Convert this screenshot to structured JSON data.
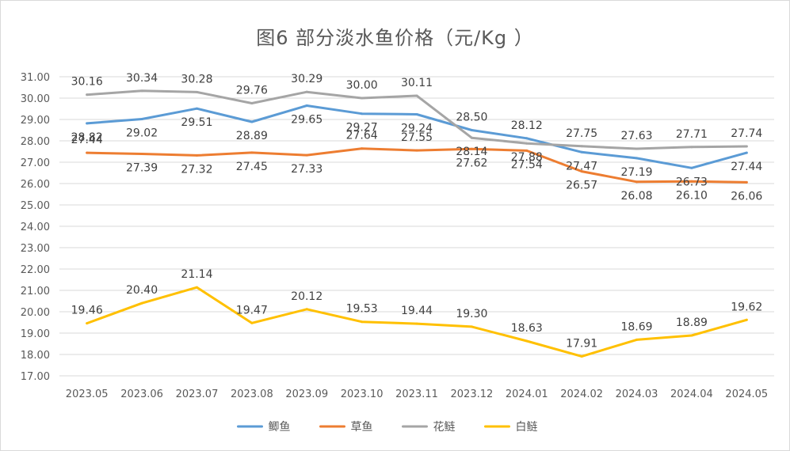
{
  "chart_data": {
    "type": "line",
    "title": "图6  部分淡水鱼价格（元/Kg ）",
    "xlabel": "",
    "ylabel": "",
    "categories": [
      "2023.05",
      "2023.06",
      "2023.07",
      "2023.08",
      "2023.09",
      "2023.10",
      "2023.11",
      "2023.12",
      "2024.01",
      "2024.02",
      "2024.03",
      "2024.04",
      "2024.05"
    ],
    "ylim": [
      17,
      31
    ],
    "yticks": [
      "17.00",
      "18.00",
      "19.00",
      "20.00",
      "21.00",
      "22.00",
      "23.00",
      "24.00",
      "25.00",
      "26.00",
      "27.00",
      "28.00",
      "29.00",
      "30.00",
      "31.00"
    ],
    "grid": true,
    "legend_position": "bottom",
    "series": [
      {
        "name": "鲫鱼",
        "color": "#5b9bd5",
        "values": [
          28.82,
          29.02,
          29.51,
          28.89,
          29.65,
          29.27,
          29.24,
          28.5,
          28.12,
          27.47,
          27.19,
          26.73,
          27.44
        ]
      },
      {
        "name": "草鱼",
        "color": "#ed7d31",
        "values": [
          27.44,
          27.39,
          27.32,
          27.45,
          27.33,
          27.64,
          27.55,
          27.62,
          27.54,
          26.57,
          26.08,
          26.1,
          26.06
        ]
      },
      {
        "name": "花鲢",
        "color": "#a5a5a5",
        "values": [
          30.16,
          30.34,
          30.28,
          29.76,
          30.29,
          30.0,
          30.11,
          28.14,
          27.88,
          27.75,
          27.63,
          27.71,
          27.74
        ]
      },
      {
        "name": "白鲢",
        "color": "#ffc000",
        "values": [
          19.46,
          20.4,
          21.14,
          19.47,
          20.12,
          19.53,
          19.44,
          19.3,
          18.63,
          17.91,
          18.69,
          18.89,
          19.62
        ]
      }
    ]
  }
}
